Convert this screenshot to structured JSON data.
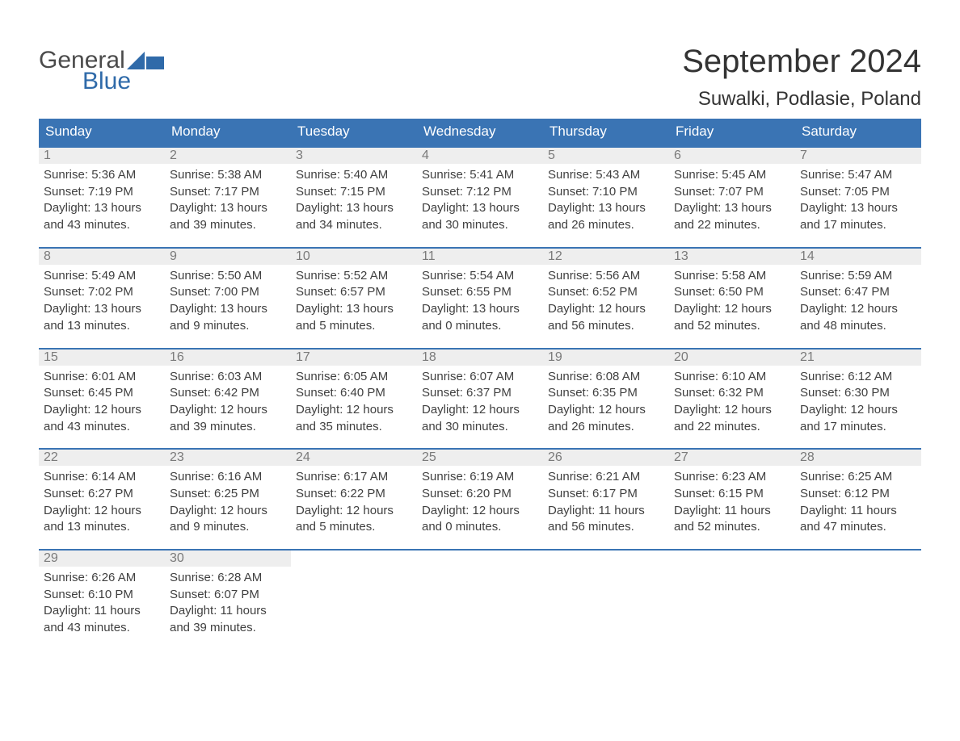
{
  "logo": {
    "text_general": "General",
    "text_blue": "Blue",
    "flag_color": "#2f6aa9"
  },
  "title": "September 2024",
  "location": "Suwalki, Podlasie, Poland",
  "colors": {
    "header_bg": "#3a74b4",
    "header_text": "#ffffff",
    "num_row_bg": "#eeeeee",
    "num_text": "#7a7a7a",
    "body_text": "#404040",
    "week_border": "#3a74b4",
    "background": "#ffffff"
  },
  "typography": {
    "title_fontsize": 40,
    "location_fontsize": 24,
    "dow_fontsize": 17,
    "daynum_fontsize": 16,
    "cell_fontsize": 15
  },
  "days_of_week": [
    "Sunday",
    "Monday",
    "Tuesday",
    "Wednesday",
    "Thursday",
    "Friday",
    "Saturday"
  ],
  "weeks": [
    [
      {
        "n": "1",
        "sr": "Sunrise: 5:36 AM",
        "ss": "Sunset: 7:19 PM",
        "d1": "Daylight: 13 hours",
        "d2": "and 43 minutes."
      },
      {
        "n": "2",
        "sr": "Sunrise: 5:38 AM",
        "ss": "Sunset: 7:17 PM",
        "d1": "Daylight: 13 hours",
        "d2": "and 39 minutes."
      },
      {
        "n": "3",
        "sr": "Sunrise: 5:40 AM",
        "ss": "Sunset: 7:15 PM",
        "d1": "Daylight: 13 hours",
        "d2": "and 34 minutes."
      },
      {
        "n": "4",
        "sr": "Sunrise: 5:41 AM",
        "ss": "Sunset: 7:12 PM",
        "d1": "Daylight: 13 hours",
        "d2": "and 30 minutes."
      },
      {
        "n": "5",
        "sr": "Sunrise: 5:43 AM",
        "ss": "Sunset: 7:10 PM",
        "d1": "Daylight: 13 hours",
        "d2": "and 26 minutes."
      },
      {
        "n": "6",
        "sr": "Sunrise: 5:45 AM",
        "ss": "Sunset: 7:07 PM",
        "d1": "Daylight: 13 hours",
        "d2": "and 22 minutes."
      },
      {
        "n": "7",
        "sr": "Sunrise: 5:47 AM",
        "ss": "Sunset: 7:05 PM",
        "d1": "Daylight: 13 hours",
        "d2": "and 17 minutes."
      }
    ],
    [
      {
        "n": "8",
        "sr": "Sunrise: 5:49 AM",
        "ss": "Sunset: 7:02 PM",
        "d1": "Daylight: 13 hours",
        "d2": "and 13 minutes."
      },
      {
        "n": "9",
        "sr": "Sunrise: 5:50 AM",
        "ss": "Sunset: 7:00 PM",
        "d1": "Daylight: 13 hours",
        "d2": "and 9 minutes."
      },
      {
        "n": "10",
        "sr": "Sunrise: 5:52 AM",
        "ss": "Sunset: 6:57 PM",
        "d1": "Daylight: 13 hours",
        "d2": "and 5 minutes."
      },
      {
        "n": "11",
        "sr": "Sunrise: 5:54 AM",
        "ss": "Sunset: 6:55 PM",
        "d1": "Daylight: 13 hours",
        "d2": "and 0 minutes."
      },
      {
        "n": "12",
        "sr": "Sunrise: 5:56 AM",
        "ss": "Sunset: 6:52 PM",
        "d1": "Daylight: 12 hours",
        "d2": "and 56 minutes."
      },
      {
        "n": "13",
        "sr": "Sunrise: 5:58 AM",
        "ss": "Sunset: 6:50 PM",
        "d1": "Daylight: 12 hours",
        "d2": "and 52 minutes."
      },
      {
        "n": "14",
        "sr": "Sunrise: 5:59 AM",
        "ss": "Sunset: 6:47 PM",
        "d1": "Daylight: 12 hours",
        "d2": "and 48 minutes."
      }
    ],
    [
      {
        "n": "15",
        "sr": "Sunrise: 6:01 AM",
        "ss": "Sunset: 6:45 PM",
        "d1": "Daylight: 12 hours",
        "d2": "and 43 minutes."
      },
      {
        "n": "16",
        "sr": "Sunrise: 6:03 AM",
        "ss": "Sunset: 6:42 PM",
        "d1": "Daylight: 12 hours",
        "d2": "and 39 minutes."
      },
      {
        "n": "17",
        "sr": "Sunrise: 6:05 AM",
        "ss": "Sunset: 6:40 PM",
        "d1": "Daylight: 12 hours",
        "d2": "and 35 minutes."
      },
      {
        "n": "18",
        "sr": "Sunrise: 6:07 AM",
        "ss": "Sunset: 6:37 PM",
        "d1": "Daylight: 12 hours",
        "d2": "and 30 minutes."
      },
      {
        "n": "19",
        "sr": "Sunrise: 6:08 AM",
        "ss": "Sunset: 6:35 PM",
        "d1": "Daylight: 12 hours",
        "d2": "and 26 minutes."
      },
      {
        "n": "20",
        "sr": "Sunrise: 6:10 AM",
        "ss": "Sunset: 6:32 PM",
        "d1": "Daylight: 12 hours",
        "d2": "and 22 minutes."
      },
      {
        "n": "21",
        "sr": "Sunrise: 6:12 AM",
        "ss": "Sunset: 6:30 PM",
        "d1": "Daylight: 12 hours",
        "d2": "and 17 minutes."
      }
    ],
    [
      {
        "n": "22",
        "sr": "Sunrise: 6:14 AM",
        "ss": "Sunset: 6:27 PM",
        "d1": "Daylight: 12 hours",
        "d2": "and 13 minutes."
      },
      {
        "n": "23",
        "sr": "Sunrise: 6:16 AM",
        "ss": "Sunset: 6:25 PM",
        "d1": "Daylight: 12 hours",
        "d2": "and 9 minutes."
      },
      {
        "n": "24",
        "sr": "Sunrise: 6:17 AM",
        "ss": "Sunset: 6:22 PM",
        "d1": "Daylight: 12 hours",
        "d2": "and 5 minutes."
      },
      {
        "n": "25",
        "sr": "Sunrise: 6:19 AM",
        "ss": "Sunset: 6:20 PM",
        "d1": "Daylight: 12 hours",
        "d2": "and 0 minutes."
      },
      {
        "n": "26",
        "sr": "Sunrise: 6:21 AM",
        "ss": "Sunset: 6:17 PM",
        "d1": "Daylight: 11 hours",
        "d2": "and 56 minutes."
      },
      {
        "n": "27",
        "sr": "Sunrise: 6:23 AM",
        "ss": "Sunset: 6:15 PM",
        "d1": "Daylight: 11 hours",
        "d2": "and 52 minutes."
      },
      {
        "n": "28",
        "sr": "Sunrise: 6:25 AM",
        "ss": "Sunset: 6:12 PM",
        "d1": "Daylight: 11 hours",
        "d2": "and 47 minutes."
      }
    ],
    [
      {
        "n": "29",
        "sr": "Sunrise: 6:26 AM",
        "ss": "Sunset: 6:10 PM",
        "d1": "Daylight: 11 hours",
        "d2": "and 43 minutes."
      },
      {
        "n": "30",
        "sr": "Sunrise: 6:28 AM",
        "ss": "Sunset: 6:07 PM",
        "d1": "Daylight: 11 hours",
        "d2": "and 39 minutes."
      },
      null,
      null,
      null,
      null,
      null
    ]
  ]
}
